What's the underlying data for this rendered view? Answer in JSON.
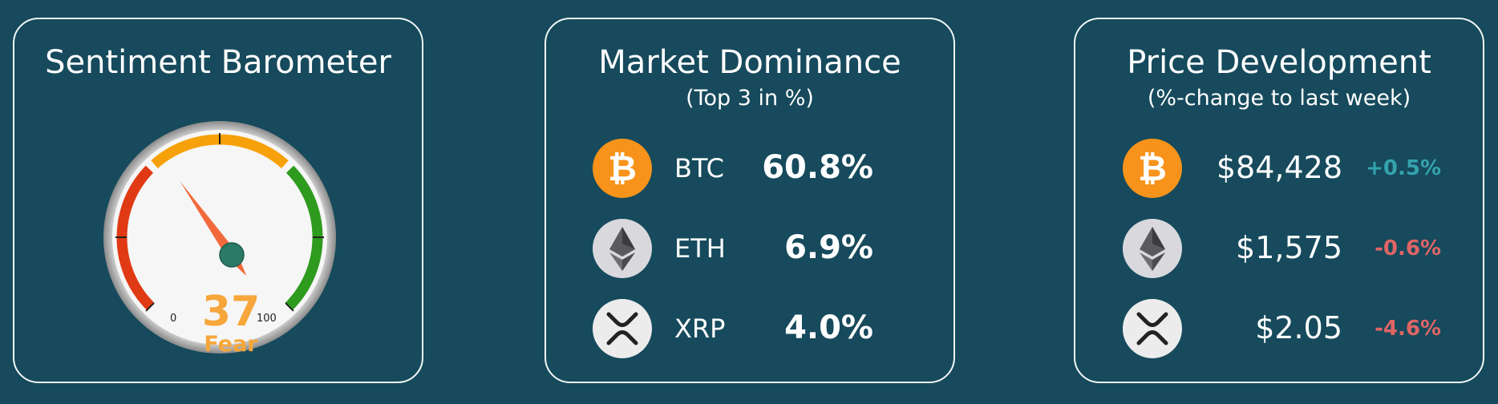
{
  "colors": {
    "background": "#164a5c",
    "card_border": "#f2f6f7",
    "positive": "#35a3ad",
    "negative": "#e06565",
    "gauge_red": "#e03a14",
    "gauge_orange": "#f7a10a",
    "gauge_green": "#2e9a1e",
    "needle": "#f26a3b",
    "needle_hub": "#2b7a66",
    "fear_text": "#f6a63a"
  },
  "sentiment": {
    "title": "Sentiment Barometer",
    "value": 37,
    "value_label": "37",
    "label": "Fear",
    "scale_min_label": "0",
    "scale_max_label": "100"
  },
  "dominance": {
    "title": "Market Dominance",
    "subtitle": "(Top 3 in %)",
    "items": [
      {
        "icon": "bitcoin-icon",
        "symbol": "BTC",
        "percent": "60.8%"
      },
      {
        "icon": "ethereum-icon",
        "symbol": "ETH",
        "percent": "6.9%"
      },
      {
        "icon": "xrp-icon",
        "symbol": "XRP",
        "percent": "4.0%"
      }
    ]
  },
  "price": {
    "title": "Price Development",
    "subtitle": "(%-change to last week)",
    "items": [
      {
        "icon": "bitcoin-icon",
        "price": "$84,428",
        "change": "+0.5%",
        "direction": "up"
      },
      {
        "icon": "ethereum-icon",
        "price": "$1,575",
        "change": "-0.6%",
        "direction": "down"
      },
      {
        "icon": "xrp-icon",
        "price": "$2.05",
        "change": "-4.6%",
        "direction": "down"
      }
    ]
  }
}
